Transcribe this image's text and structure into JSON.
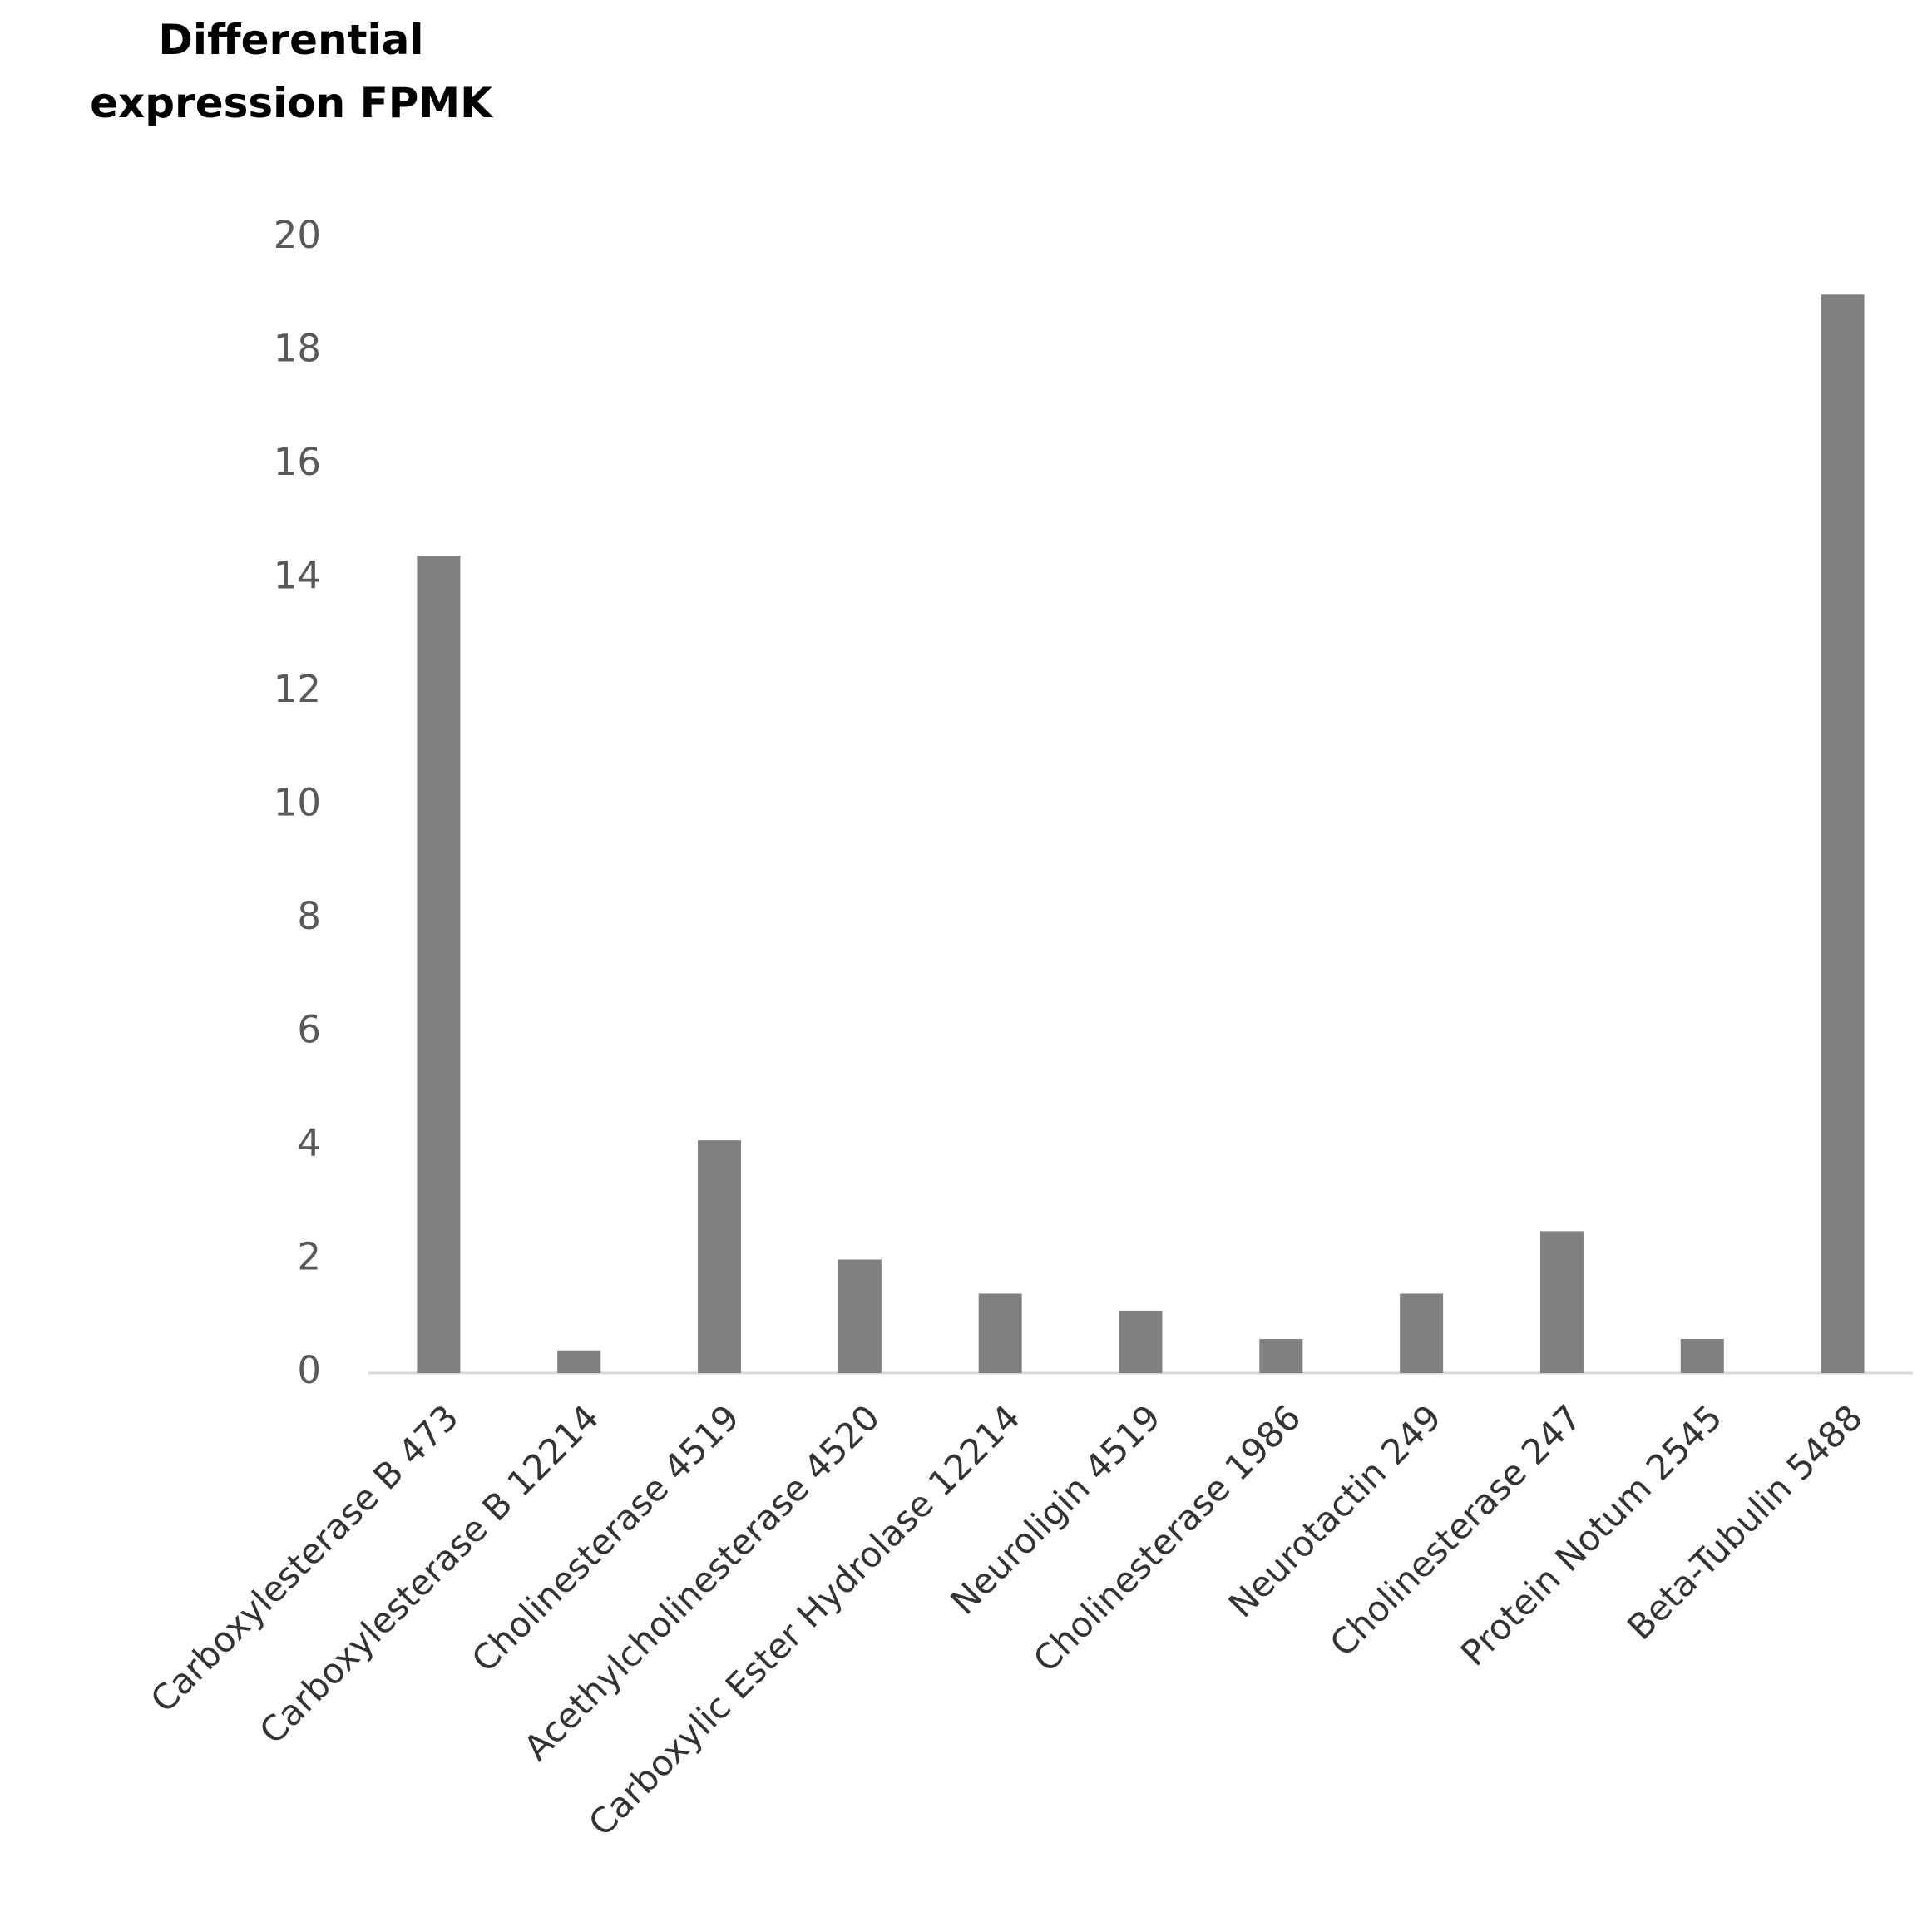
{
  "chart_data": {
    "type": "bar",
    "title": "Differential expression FPMK",
    "categories": [
      "Carboxylesterase B 473",
      "Carboxylesterase B 12214",
      "Cholinesterase 4519",
      "Acethylcholinesterase 4520",
      "Carboxylic Ester Hydrolase 12214",
      "Neuroligin 4519",
      "Cholinesterase 1986",
      "Neurotactin 249",
      "Cholinesterase 247",
      "Protein Notum 2545",
      "Beta-Tubulin 5488"
    ],
    "values": [
      14.4,
      0.4,
      4.1,
      2.0,
      1.4,
      1.1,
      0.6,
      1.4,
      2.5,
      0.6,
      19.0
    ],
    "color": "#808080",
    "ylim": [
      0,
      20
    ],
    "yticks": [
      0,
      2,
      4,
      6,
      8,
      10,
      12,
      14,
      16,
      18,
      20
    ],
    "grid": false
  }
}
